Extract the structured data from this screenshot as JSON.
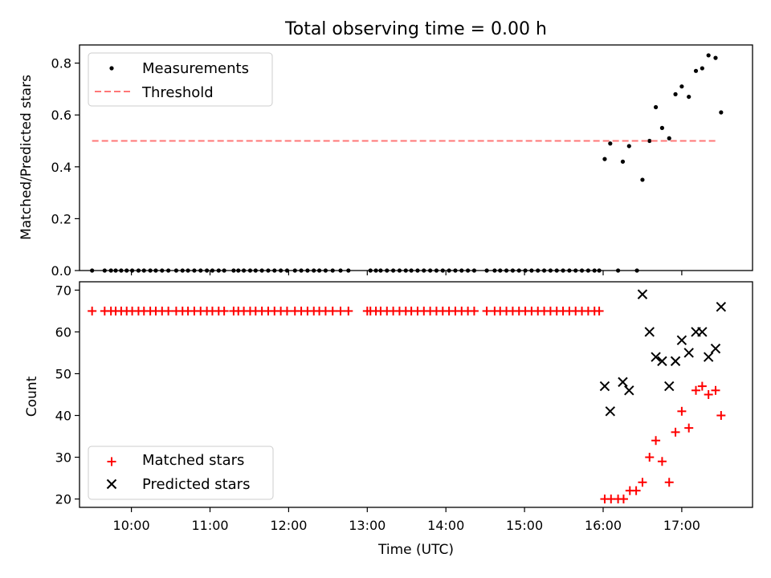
{
  "figure": {
    "title": "Total observing time = 0.00 h"
  },
  "chart_data": [
    {
      "type": "scatter",
      "panel": "top",
      "title": "Total observing time = 0.00 h",
      "xlabel": "",
      "ylabel": "Matched/Predicted stars",
      "xlim": [
        9.34,
        17.9
      ],
      "ylim": [
        0,
        0.87
      ],
      "yticks": [
        0.0,
        0.2,
        0.4,
        0.6,
        0.8
      ],
      "ytick_labels": [
        "0.0",
        "0.2",
        "0.4",
        "0.6",
        "0.8"
      ],
      "legend": {
        "position": "top-left",
        "entries": [
          {
            "label": "Measurements",
            "marker": "dot",
            "color": "#000000"
          },
          {
            "label": "Threshold",
            "marker": "dashed-line",
            "color": "#ff7777"
          }
        ]
      },
      "series": [
        {
          "name": "Measurements",
          "marker": "dot",
          "color": "#000000",
          "points": [
            [
              9.5,
              0
            ],
            [
              9.66,
              0
            ],
            [
              9.74,
              0
            ],
            [
              9.8,
              0
            ],
            [
              9.87,
              0
            ],
            [
              9.94,
              0
            ],
            [
              10.01,
              0
            ],
            [
              10.09,
              0
            ],
            [
              10.16,
              0
            ],
            [
              10.24,
              0
            ],
            [
              10.31,
              0
            ],
            [
              10.39,
              0
            ],
            [
              10.47,
              0
            ],
            [
              10.57,
              0
            ],
            [
              10.65,
              0
            ],
            [
              10.72,
              0
            ],
            [
              10.8,
              0
            ],
            [
              10.88,
              0
            ],
            [
              10.96,
              0
            ],
            [
              11.03,
              0
            ],
            [
              11.11,
              0
            ],
            [
              11.18,
              0
            ],
            [
              11.3,
              0
            ],
            [
              11.36,
              0
            ],
            [
              11.43,
              0
            ],
            [
              11.51,
              0
            ],
            [
              11.58,
              0
            ],
            [
              11.66,
              0
            ],
            [
              11.74,
              0
            ],
            [
              11.82,
              0
            ],
            [
              11.9,
              0
            ],
            [
              11.98,
              0
            ],
            [
              12.08,
              0
            ],
            [
              12.16,
              0
            ],
            [
              12.24,
              0
            ],
            [
              12.32,
              0
            ],
            [
              12.39,
              0
            ],
            [
              12.47,
              0
            ],
            [
              12.56,
              0
            ],
            [
              12.66,
              0
            ],
            [
              12.76,
              0
            ],
            [
              13.04,
              0
            ],
            [
              13.11,
              0
            ],
            [
              13.17,
              0
            ],
            [
              13.25,
              0
            ],
            [
              13.33,
              0
            ],
            [
              13.41,
              0
            ],
            [
              13.49,
              0
            ],
            [
              13.56,
              0
            ],
            [
              13.64,
              0
            ],
            [
              13.72,
              0
            ],
            [
              13.8,
              0
            ],
            [
              13.88,
              0
            ],
            [
              13.96,
              0
            ],
            [
              14.04,
              0
            ],
            [
              14.12,
              0
            ],
            [
              14.2,
              0
            ],
            [
              14.28,
              0
            ],
            [
              14.36,
              0
            ],
            [
              14.52,
              0
            ],
            [
              14.62,
              0
            ],
            [
              14.69,
              0
            ],
            [
              14.77,
              0
            ],
            [
              14.85,
              0
            ],
            [
              14.93,
              0
            ],
            [
              15.01,
              0
            ],
            [
              15.09,
              0
            ],
            [
              15.17,
              0
            ],
            [
              15.25,
              0
            ],
            [
              15.33,
              0
            ],
            [
              15.41,
              0
            ],
            [
              15.49,
              0
            ],
            [
              15.57,
              0
            ],
            [
              15.65,
              0
            ],
            [
              15.73,
              0
            ],
            [
              15.81,
              0
            ],
            [
              15.89,
              0
            ],
            [
              15.95,
              0
            ],
            [
              16.19,
              0
            ],
            [
              16.43,
              0
            ],
            [
              16.02,
              0.43
            ],
            [
              16.09,
              0.49
            ],
            [
              16.25,
              0.42
            ],
            [
              16.33,
              0.48
            ],
            [
              16.5,
              0.35
            ],
            [
              16.59,
              0.5
            ],
            [
              16.67,
              0.63
            ],
            [
              16.75,
              0.55
            ],
            [
              16.84,
              0.51
            ],
            [
              16.92,
              0.68
            ],
            [
              17.0,
              0.71
            ],
            [
              17.09,
              0.67
            ],
            [
              17.18,
              0.77
            ],
            [
              17.26,
              0.78
            ],
            [
              17.34,
              0.83
            ],
            [
              17.43,
              0.82
            ],
            [
              17.5,
              0.61
            ]
          ]
        },
        {
          "name": "Threshold",
          "marker": "dashed-line",
          "color": "#ff7777",
          "points": [
            [
              9.5,
              0.5
            ],
            [
              17.45,
              0.5
            ]
          ]
        }
      ]
    },
    {
      "type": "scatter",
      "panel": "bottom",
      "xlabel": "Time (UTC)",
      "ylabel": "Count",
      "xlim": [
        9.34,
        17.9
      ],
      "ylim": [
        18,
        72
      ],
      "xticks": [
        10,
        11,
        12,
        13,
        14,
        15,
        16,
        17
      ],
      "xtick_labels": [
        "10:00",
        "11:00",
        "12:00",
        "13:00",
        "14:00",
        "15:00",
        "16:00",
        "17:00"
      ],
      "yticks": [
        20,
        30,
        40,
        50,
        60,
        70
      ],
      "ytick_labels": [
        "20",
        "30",
        "40",
        "50",
        "60",
        "70"
      ],
      "legend": {
        "position": "bottom-left",
        "entries": [
          {
            "label": "Matched stars",
            "marker": "plus",
            "color": "#ff0000"
          },
          {
            "label": "Predicted stars",
            "marker": "x",
            "color": "#000000"
          }
        ]
      },
      "series": [
        {
          "name": "Matched stars",
          "marker": "plus",
          "color": "#ff0000",
          "points": [
            [
              9.5,
              65
            ],
            [
              9.66,
              65
            ],
            [
              9.74,
              65
            ],
            [
              9.8,
              65
            ],
            [
              9.87,
              65
            ],
            [
              9.94,
              65
            ],
            [
              10.01,
              65
            ],
            [
              10.09,
              65
            ],
            [
              10.16,
              65
            ],
            [
              10.24,
              65
            ],
            [
              10.31,
              65
            ],
            [
              10.39,
              65
            ],
            [
              10.47,
              65
            ],
            [
              10.57,
              65
            ],
            [
              10.65,
              65
            ],
            [
              10.72,
              65
            ],
            [
              10.8,
              65
            ],
            [
              10.88,
              65
            ],
            [
              10.96,
              65
            ],
            [
              11.03,
              65
            ],
            [
              11.11,
              65
            ],
            [
              11.18,
              65
            ],
            [
              11.3,
              65
            ],
            [
              11.36,
              65
            ],
            [
              11.43,
              65
            ],
            [
              11.51,
              65
            ],
            [
              11.58,
              65
            ],
            [
              11.66,
              65
            ],
            [
              11.74,
              65
            ],
            [
              11.82,
              65
            ],
            [
              11.9,
              65
            ],
            [
              11.98,
              65
            ],
            [
              12.08,
              65
            ],
            [
              12.16,
              65
            ],
            [
              12.24,
              65
            ],
            [
              12.32,
              65
            ],
            [
              12.39,
              65
            ],
            [
              12.47,
              65
            ],
            [
              12.56,
              65
            ],
            [
              12.66,
              65
            ],
            [
              12.76,
              65
            ],
            [
              13.0,
              65
            ],
            [
              13.04,
              65
            ],
            [
              13.11,
              65
            ],
            [
              13.17,
              65
            ],
            [
              13.25,
              65
            ],
            [
              13.33,
              65
            ],
            [
              13.41,
              65
            ],
            [
              13.49,
              65
            ],
            [
              13.56,
              65
            ],
            [
              13.64,
              65
            ],
            [
              13.72,
              65
            ],
            [
              13.8,
              65
            ],
            [
              13.88,
              65
            ],
            [
              13.96,
              65
            ],
            [
              14.04,
              65
            ],
            [
              14.12,
              65
            ],
            [
              14.2,
              65
            ],
            [
              14.28,
              65
            ],
            [
              14.36,
              65
            ],
            [
              14.52,
              65
            ],
            [
              14.62,
              65
            ],
            [
              14.69,
              65
            ],
            [
              14.77,
              65
            ],
            [
              14.85,
              65
            ],
            [
              14.93,
              65
            ],
            [
              15.01,
              65
            ],
            [
              15.09,
              65
            ],
            [
              15.17,
              65
            ],
            [
              15.25,
              65
            ],
            [
              15.33,
              65
            ],
            [
              15.41,
              65
            ],
            [
              15.49,
              65
            ],
            [
              15.57,
              65
            ],
            [
              15.65,
              65
            ],
            [
              15.73,
              65
            ],
            [
              15.81,
              65
            ],
            [
              15.89,
              65
            ],
            [
              15.95,
              65
            ],
            [
              16.02,
              20
            ],
            [
              16.1,
              20
            ],
            [
              16.19,
              20
            ],
            [
              16.26,
              20
            ],
            [
              16.34,
              22
            ],
            [
              16.42,
              22
            ],
            [
              16.5,
              24
            ],
            [
              16.59,
              30
            ],
            [
              16.67,
              34
            ],
            [
              16.75,
              29
            ],
            [
              16.84,
              24
            ],
            [
              16.92,
              36
            ],
            [
              17.0,
              41
            ],
            [
              17.09,
              37
            ],
            [
              17.18,
              46
            ],
            [
              17.26,
              47
            ],
            [
              17.34,
              45
            ],
            [
              17.43,
              46
            ],
            [
              17.5,
              40
            ]
          ]
        },
        {
          "name": "Predicted stars",
          "marker": "x",
          "color": "#000000",
          "points": [
            [
              16.02,
              47
            ],
            [
              16.09,
              41
            ],
            [
              16.25,
              48
            ],
            [
              16.33,
              46
            ],
            [
              16.5,
              69
            ],
            [
              16.59,
              60
            ],
            [
              16.67,
              54
            ],
            [
              16.75,
              53
            ],
            [
              16.84,
              47
            ],
            [
              16.92,
              53
            ],
            [
              17.0,
              58
            ],
            [
              17.09,
              55
            ],
            [
              17.18,
              60
            ],
            [
              17.26,
              60
            ],
            [
              17.34,
              54
            ],
            [
              17.43,
              56
            ],
            [
              17.5,
              66
            ]
          ]
        }
      ]
    }
  ]
}
